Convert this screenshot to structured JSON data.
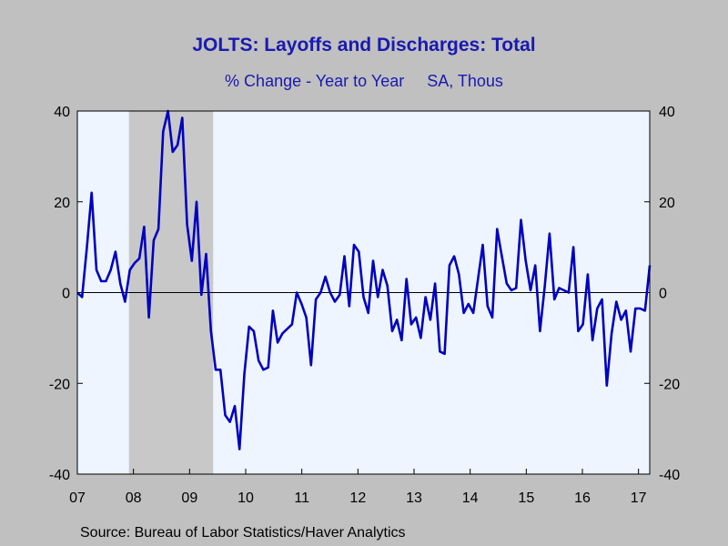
{
  "chart_data": {
    "type": "line",
    "title": "JOLTS: Layoffs and Discharges: Total",
    "subtitle_left": "% Change - Year to Year",
    "subtitle_right": "SA, Thous",
    "source": "Source:  Bureau of Labor Statistics/Haver Analytics",
    "ylim": [
      -40,
      40
    ],
    "y_ticks": [
      40,
      20,
      0,
      -20,
      -40
    ],
    "x_tick_labels": [
      "07",
      "08",
      "09",
      "10",
      "11",
      "12",
      "13",
      "14",
      "15",
      "16",
      "17"
    ],
    "xlim": [
      2007.0,
      2017.2
    ],
    "recession": [
      2007.92,
      2009.42
    ],
    "grid": false,
    "zero_line": true,
    "colors": {
      "line": "#0000c0",
      "plot_bg": "#eef5ff",
      "recession": "#c8c8c8",
      "outer_bg": "#c0c0c0",
      "title": "#1a1ab0"
    },
    "series": [
      {
        "values": [
          0,
          -1,
          10,
          22,
          5,
          2.5,
          2.5,
          5,
          9,
          2,
          -2,
          5,
          6.5,
          7.5,
          14.5,
          -5.5,
          11.5,
          14,
          35.5,
          40,
          31,
          32.5,
          38.5,
          15,
          7,
          20,
          -0.5,
          8.5,
          -8.5,
          -17,
          -17,
          -27,
          -28.5,
          -25,
          -34.5,
          -18,
          -7.5,
          -8.5,
          -15,
          -17,
          -16.5,
          -4,
          -11,
          -9,
          -8,
          -7,
          0,
          -2.5,
          -5.5,
          -16,
          -1.5,
          0,
          3.5,
          0,
          -2,
          -0.5,
          8,
          -3,
          10.5,
          9,
          -1,
          -4.5,
          7,
          -1,
          5,
          1.5,
          -8.5,
          -6,
          -10.5,
          3,
          -7,
          -5.5,
          -10,
          -1,
          -6,
          2,
          -13,
          -13.5,
          6,
          8,
          4,
          -4.5,
          -2.5,
          -4.5,
          3,
          10.5,
          -3,
          -5.5,
          14,
          8,
          2,
          0.5,
          1,
          16,
          7,
          0.5,
          6,
          -8.5,
          1.5,
          13,
          -1.5,
          1,
          0.5,
          0,
          10,
          -8.5,
          -7,
          4,
          -10.5,
          -3.5,
          -1.5,
          -20.5,
          -9,
          -2,
          -6,
          -4,
          -13,
          -3.5,
          -3.5,
          -4,
          6
        ]
      }
    ]
  }
}
